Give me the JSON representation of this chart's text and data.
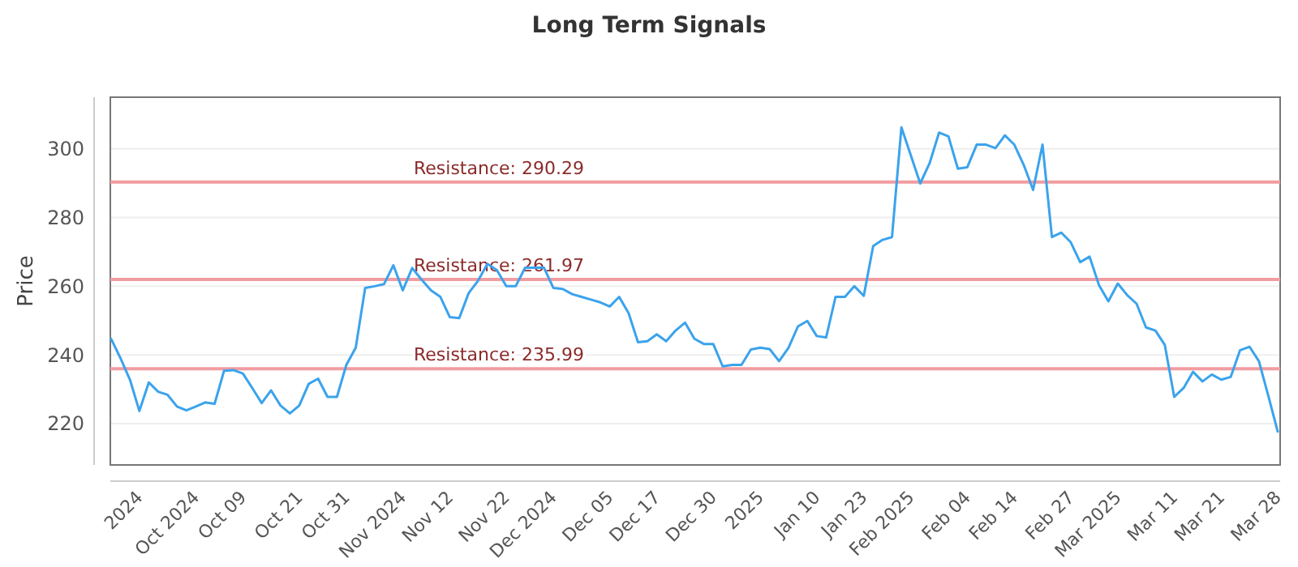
{
  "chart_data": {
    "type": "line",
    "title": "Long Term Signals",
    "ylabel": "Price",
    "categories": [
      null,
      null,
      null,
      "2024",
      null,
      null,
      null,
      null,
      null,
      "Oct 2024",
      null,
      null,
      null,
      null,
      "Oct 09",
      null,
      null,
      null,
      null,
      null,
      "Oct 21",
      null,
      null,
      null,
      null,
      "Oct 31",
      null,
      null,
      null,
      null,
      null,
      "Nov 2024",
      null,
      null,
      null,
      null,
      "Nov 12",
      null,
      null,
      null,
      null,
      null,
      "Nov 22",
      null,
      null,
      null,
      null,
      "Dec 2024",
      null,
      null,
      null,
      null,
      null,
      "Dec 05",
      null,
      null,
      null,
      null,
      "Dec 17",
      null,
      null,
      null,
      null,
      null,
      "Dec 30",
      null,
      null,
      null,
      null,
      "2025",
      null,
      null,
      null,
      null,
      null,
      "Jan 10",
      null,
      null,
      null,
      null,
      "Jan 23",
      null,
      null,
      null,
      null,
      "Feb 2025",
      null,
      null,
      null,
      null,
      null,
      "Feb 04",
      null,
      null,
      null,
      null,
      "Feb 14",
      null,
      null,
      null,
      null,
      null,
      "Feb 27",
      null,
      null,
      null,
      null,
      "Mar 2025",
      null,
      null,
      null,
      null,
      null,
      "Mar 11",
      null,
      null,
      null,
      null,
      "Mar 21",
      null,
      null,
      null,
      null,
      null,
      "Mar 28"
    ],
    "series": [
      {
        "color": "#3ba3ec",
        "values": [
          244.7,
          239,
          232.8,
          223.7,
          232,
          229.3,
          228.4,
          225,
          223.9,
          225,
          226.2,
          225.8,
          235.4,
          235.6,
          234.6,
          230.4,
          226,
          229.7,
          225.3,
          223,
          225.3,
          231.6,
          233.1,
          227.8,
          227.8,
          237.1,
          242.1,
          259.5,
          260,
          260.6,
          266.1,
          258.8,
          265.3,
          261.9,
          258.8,
          256.9,
          251,
          250.7,
          258,
          261.6,
          266.5,
          264.7,
          260,
          260,
          265.4,
          265.4,
          265.4,
          259.5,
          259.2,
          257.7,
          256.9,
          256.1,
          255.3,
          254.1,
          256.9,
          252.2,
          243.7,
          244,
          246,
          244,
          247.1,
          249.4,
          244.7,
          243.2,
          243.2,
          236.7,
          237.1,
          237.1,
          241.6,
          242.1,
          241.7,
          238.2,
          242.1,
          248.3,
          249.9,
          245.5,
          245.1,
          256.9,
          256.9,
          260,
          257.2,
          271.7,
          273.5,
          274.3,
          306.2,
          298.1,
          289.9,
          295.8,
          304.7,
          303.6,
          294.2,
          294.6,
          301.2,
          301.2,
          300.2,
          303.9,
          301.2,
          295.3,
          288,
          301.2,
          274.3,
          275.6,
          272.8,
          267,
          268.6,
          260.3,
          255.6,
          260.8,
          257.4,
          254.9,
          248,
          247.1,
          242.9,
          227.8,
          230.4,
          235.1,
          232.3,
          234.3,
          232.8,
          233.6,
          241.4,
          242.4,
          238.2,
          228.1,
          217.7
        ]
      }
    ],
    "ylim": [
      208,
      315
    ],
    "yticks": [
      220,
      240,
      260,
      280,
      300
    ],
    "grid": "y",
    "marker": "none",
    "line_style": "solid",
    "ref_lines": [
      {
        "axis": "y",
        "value": 290.29,
        "label": "Resistance: 290.29",
        "color": "#f19ca1"
      },
      {
        "axis": "y",
        "value": 261.97,
        "label": "Resistance: 261.97",
        "color": "#f19ca1"
      },
      {
        "axis": "y",
        "value": 235.99,
        "label": "Resistance: 235.99",
        "color": "#f19ca1"
      }
    ]
  }
}
